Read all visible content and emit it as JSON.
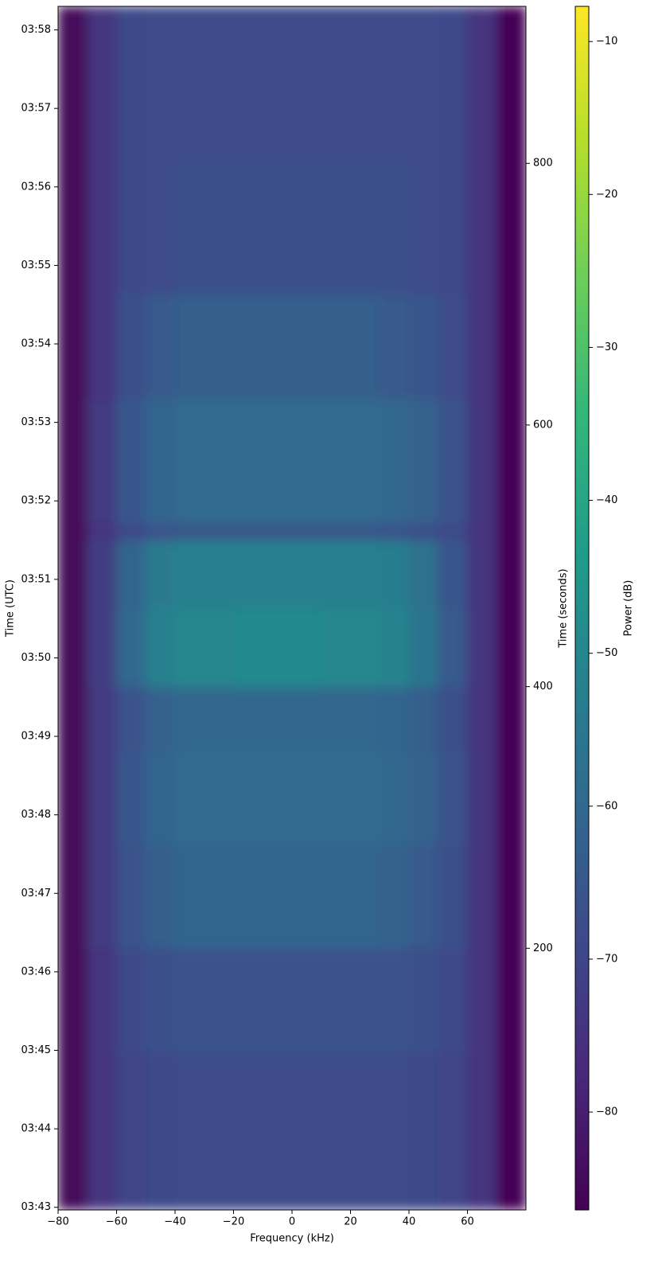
{
  "chart_data": {
    "type": "heatmap",
    "xlabel": "Frequency (kHz)",
    "ylabel": "Time (UTC)",
    "y2label": "Time (seconds)",
    "colorbar_label": "Power (dB)",
    "colormap": "viridis",
    "xlim": [
      -80,
      80
    ],
    "xticks": [
      {
        "value": -80,
        "label": "−80"
      },
      {
        "value": -60,
        "label": "−60"
      },
      {
        "value": -40,
        "label": "−40"
      },
      {
        "value": -20,
        "label": "−20"
      },
      0,
      20,
      40,
      60
    ],
    "ylim": [
      0,
      920
    ],
    "yticks": [
      {
        "value": 2,
        "label": "03:43"
      },
      {
        "value": 62,
        "label": "03:44"
      },
      {
        "value": 122,
        "label": "03:45"
      },
      {
        "value": 182,
        "label": "03:46"
      },
      {
        "value": 242,
        "label": "03:47"
      },
      {
        "value": 302,
        "label": "03:48"
      },
      {
        "value": 362,
        "label": "03:49"
      },
      {
        "value": 422,
        "label": "03:50"
      },
      {
        "value": 482,
        "label": "03:51"
      },
      {
        "value": 542,
        "label": "03:52"
      },
      {
        "value": 602,
        "label": "03:53"
      },
      {
        "value": 662,
        "label": "03:54"
      },
      {
        "value": 722,
        "label": "03:55"
      },
      {
        "value": 782,
        "label": "03:56"
      },
      {
        "value": 842,
        "label": "03:57"
      },
      {
        "value": 902,
        "label": "03:58"
      }
    ],
    "y2lim": [
      0,
      920
    ],
    "y2ticks": [
      200,
      400,
      600,
      800
    ],
    "clim": [
      -86.4,
      -7.7
    ],
    "cticks": [
      {
        "value": -80,
        "label": "−80"
      },
      {
        "value": -70,
        "label": "−70"
      },
      {
        "value": -60,
        "label": "−60"
      },
      {
        "value": -50,
        "label": "−50"
      },
      {
        "value": -40,
        "label": "−40"
      },
      {
        "value": -30,
        "label": "−30"
      },
      {
        "value": -20,
        "label": "−20"
      },
      {
        "value": -10,
        "label": "−10"
      }
    ],
    "x_edges": [
      -80,
      -70,
      -60,
      -50,
      -40,
      -30,
      -20,
      -10,
      0,
      10,
      20,
      30,
      40,
      50,
      60,
      70,
      80
    ],
    "y_edges": [
      0,
      120,
      200,
      280,
      350,
      400,
      460,
      512,
      525,
      620,
      700,
      800,
      920
    ],
    "z": [
      [
        -85,
        -74,
        -70,
        -69,
        -68,
        -68,
        -68,
        -68,
        -68,
        -68,
        -68,
        -68,
        -69,
        -70,
        -74,
        -86
      ],
      [
        -85,
        -74,
        -69,
        -67,
        -66,
        -66,
        -66,
        -66,
        -66,
        -66,
        -66,
        -66,
        -67,
        -69,
        -74,
        -86
      ],
      [
        -85,
        -73,
        -66,
        -63,
        -61,
        -61,
        -61,
        -61,
        -61,
        -61,
        -61,
        -62,
        -64,
        -67,
        -74,
        -86
      ],
      [
        -85,
        -73,
        -65,
        -61,
        -59,
        -59,
        -59,
        -59,
        -59,
        -59,
        -59,
        -60,
        -62,
        -66,
        -74,
        -86
      ],
      [
        -85,
        -73,
        -66,
        -62,
        -60,
        -60,
        -60,
        -60,
        -60,
        -60,
        -60,
        -61,
        -63,
        -67,
        -74,
        -86
      ],
      [
        -85,
        -72,
        -60,
        -52,
        -50,
        -50,
        -49,
        -49,
        -49,
        -50,
        -50,
        -51,
        -56,
        -64,
        -74,
        -86
      ],
      [
        -85,
        -72,
        -61,
        -54,
        -52,
        -52,
        -52,
        -52,
        -52,
        -52,
        -52,
        -53,
        -57,
        -65,
        -74,
        -86
      ],
      [
        -85,
        -74,
        -69,
        -66,
        -65,
        -65,
        -65,
        -65,
        -65,
        -65,
        -65,
        -66,
        -67,
        -69,
        -74,
        -86
      ],
      [
        -85,
        -73,
        -65,
        -61,
        -59,
        -59,
        -59,
        -59,
        -59,
        -59,
        -59,
        -60,
        -62,
        -66,
        -74,
        -86
      ],
      [
        -85,
        -74,
        -67,
        -64,
        -63,
        -63,
        -63,
        -63,
        -63,
        -63,
        -63,
        -64,
        -65,
        -68,
        -74,
        -86
      ],
      [
        -85,
        -74,
        -69,
        -68,
        -67,
        -67,
        -67,
        -67,
        -67,
        -67,
        -67,
        -67,
        -68,
        -69,
        -74,
        -86
      ],
      [
        -85,
        -74,
        -69,
        -68,
        -68,
        -68,
        -68,
        -68,
        -68,
        -68,
        -68,
        -68,
        -68,
        -69,
        -74,
        -86
      ]
    ]
  }
}
